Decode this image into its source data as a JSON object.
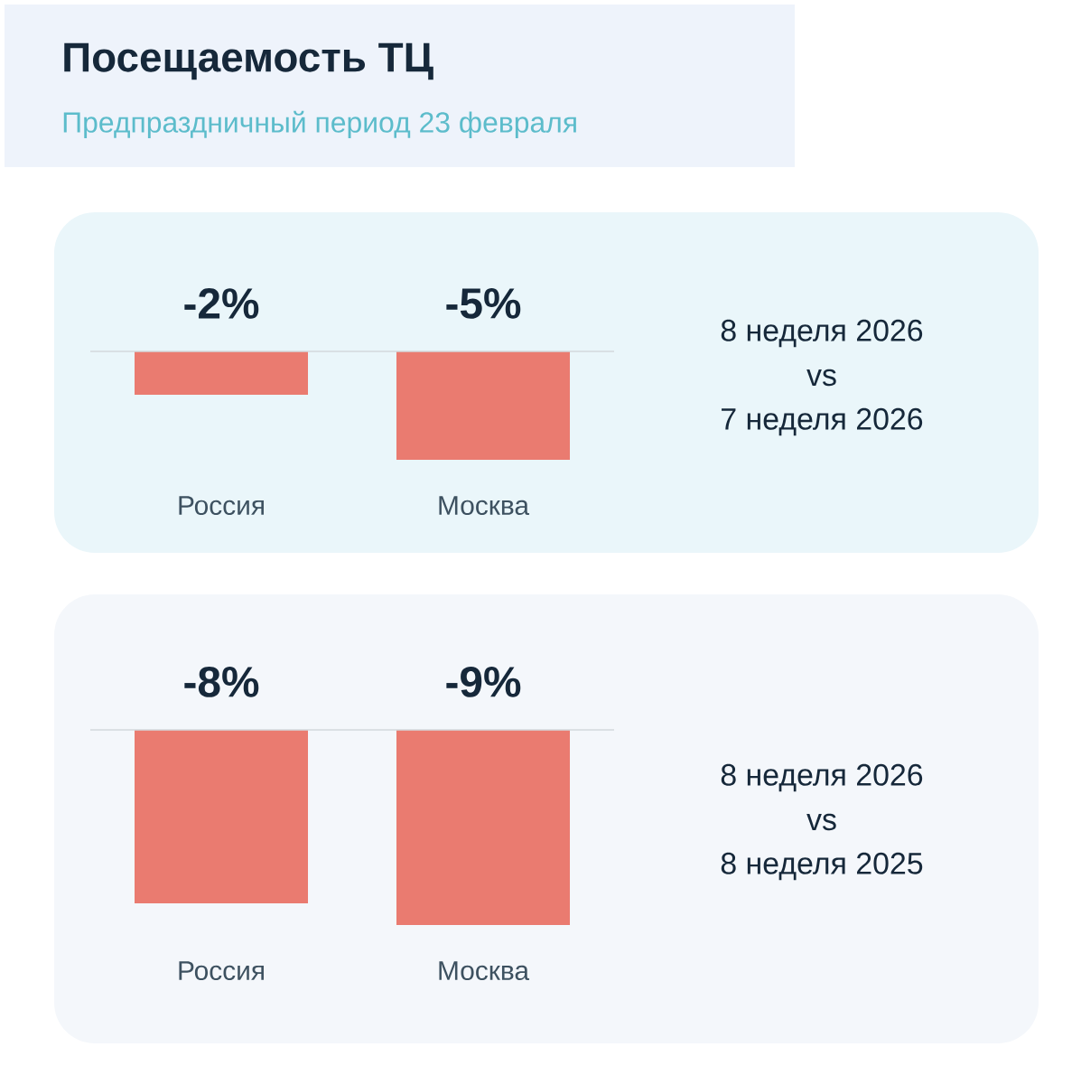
{
  "chart_data": [
    {
      "type": "bar",
      "title": "Посещаемость ТЦ",
      "subtitle": "Предпраздничный период 23 февраля",
      "categories": [
        "Россия",
        "Москва"
      ],
      "values": [
        -2,
        -5
      ],
      "value_labels": [
        "-2%",
        "-5%"
      ],
      "color": "#ea7b70",
      "annotations": [
        "8 неделя 2026",
        "vs",
        "7 неделя 2026"
      ]
    },
    {
      "type": "bar",
      "categories": [
        "Россия",
        "Москва"
      ],
      "values": [
        -8,
        -9
      ],
      "value_labels": [
        "-8%",
        "-9%"
      ],
      "color": "#ea7b70",
      "annotations": [
        "8 неделя 2026",
        "vs",
        "8 неделя 2025"
      ]
    }
  ]
}
